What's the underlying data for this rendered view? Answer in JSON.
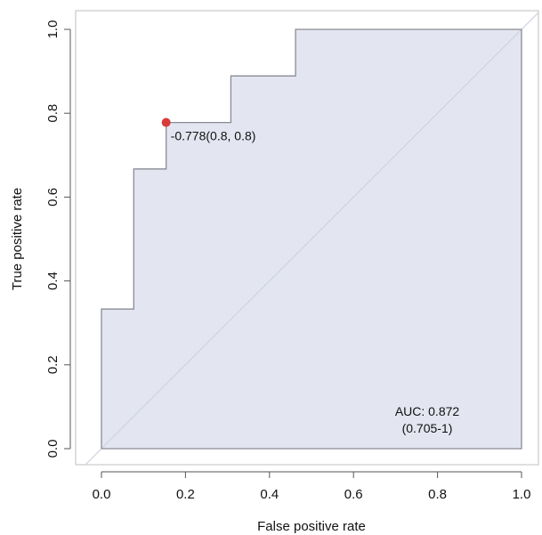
{
  "chart_data": {
    "type": "line",
    "xlabel": "False positive rate",
    "ylabel": "True positive rate",
    "xlim": [
      0,
      1
    ],
    "ylim": [
      0,
      1
    ],
    "x_ticks": [
      "0.0",
      "0.2",
      "0.4",
      "0.6",
      "0.8",
      "1.0"
    ],
    "y_ticks": [
      "0.0",
      "0.2",
      "0.4",
      "0.6",
      "0.8",
      "1.0"
    ],
    "grid": false,
    "roc_curve": {
      "x": [
        0,
        0,
        0.077,
        0.077,
        0.154,
        0.154,
        0.308,
        0.308,
        0.462,
        0.462,
        1.0
      ],
      "y": [
        0,
        0.333,
        0.333,
        0.667,
        0.667,
        0.778,
        0.778,
        0.889,
        0.889,
        1.0,
        1.0
      ],
      "fill_color": "#e3e6f0",
      "line_color": "#8a8a95"
    },
    "diagonal": {
      "x": [
        0,
        1
      ],
      "y": [
        0,
        1
      ],
      "color": "#cfd3e0"
    },
    "threshold_point": {
      "x": 0.154,
      "y": 0.778,
      "label": "-0.778(0.8, 0.8)",
      "color": "#d93a3a"
    },
    "auc_text": {
      "line1": "AUC: 0.872",
      "line2": "(0.705-1)"
    }
  }
}
